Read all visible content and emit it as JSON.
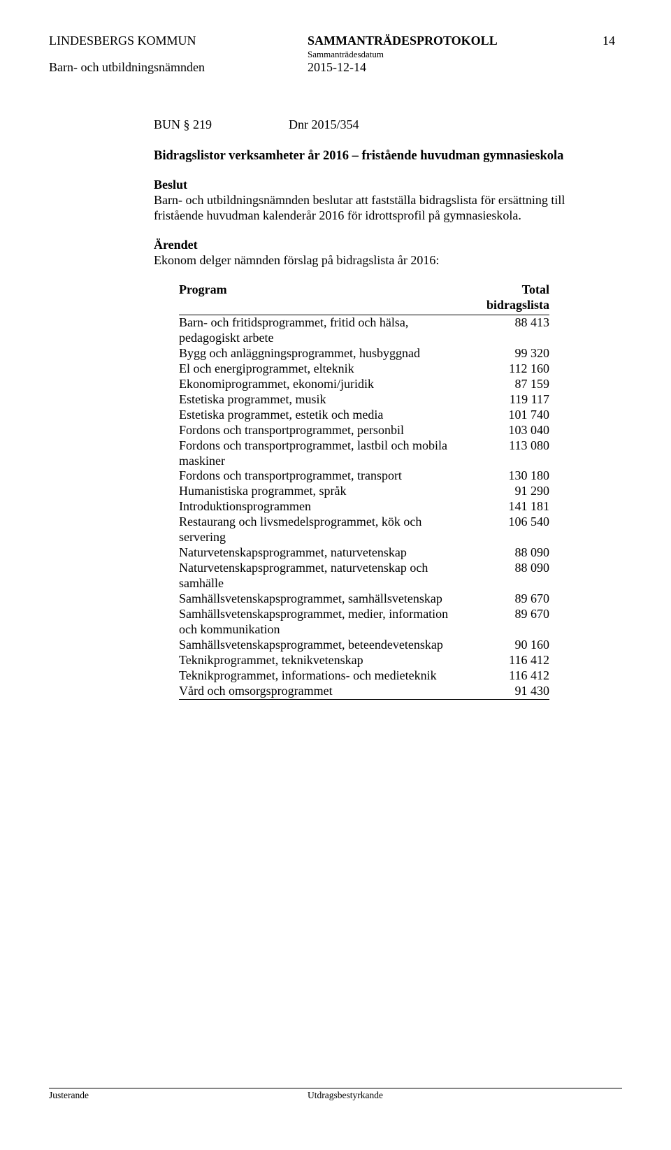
{
  "header": {
    "org": "LINDESBERGS KOMMUN",
    "committee": "Barn- och utbildningsnämnden",
    "doc_type": "SAMMANTRÄDESPROTOKOLL",
    "date_label": "Sammanträdesdatum",
    "date": "2015-12-14",
    "page_no": "14"
  },
  "bun": {
    "ref": "BUN § 219",
    "dnr": "Dnr 2015/354"
  },
  "title": "Bidragslistor verksamheter år 2016 – fristående huvudman gymnasieskola",
  "beslut": {
    "heading": "Beslut",
    "text": "Barn- och utbildningsnämnden beslutar att fastställa bidragslista för ersättning till fristående huvudman kalenderår 2016 för idrottsprofil på gymnasieskola."
  },
  "arendet": {
    "heading": "Ärendet",
    "text": "Ekonom delger nämnden förslag på bidragslista år 2016:"
  },
  "table": {
    "col_program": "Program",
    "col_total_1": "Total",
    "col_total_2": "bidragslista",
    "rows": [
      {
        "program": "Barn- och fritidsprogrammet, fritid och hälsa, pedagogiskt arbete",
        "value": "88 413"
      },
      {
        "program": "Bygg och anläggningsprogrammet, husbyggnad",
        "value": "99 320"
      },
      {
        "program": "El och energiprogrammet, elteknik",
        "value": "112 160"
      },
      {
        "program": "Ekonomiprogrammet, ekonomi/juridik",
        "value": "87 159"
      },
      {
        "program": "Estetiska programmet, musik",
        "value": "119 117"
      },
      {
        "program": "Estetiska programmet, estetik och media",
        "value": "101 740"
      },
      {
        "program": "Fordons och transportprogrammet, personbil",
        "value": "103 040"
      },
      {
        "program": "Fordons och transportprogrammet, lastbil och mobila maskiner",
        "value": "113 080"
      },
      {
        "program": "Fordons och transportprogrammet, transport",
        "value": "130 180"
      },
      {
        "program": "Humanistiska programmet, språk",
        "value": "91 290"
      },
      {
        "program": "Introduktionsprogrammen",
        "value": "141 181"
      },
      {
        "program": "Restaurang och livsmedelsprogrammet, kök och servering",
        "value": "106 540"
      },
      {
        "program": "Naturvetenskapsprogrammet, naturvetenskap",
        "value": "88 090"
      },
      {
        "program": "Naturvetenskapsprogrammet, naturvetenskap och samhälle",
        "value": "88 090"
      },
      {
        "program": "Samhällsvetenskapsprogrammet, samhällsvetenskap",
        "value": "89 670"
      },
      {
        "program": "Samhällsvetenskapsprogrammet, medier, information och kommunikation",
        "value": "89 670"
      },
      {
        "program": " Samhällsvetenskapsprogrammet, beteendevetenskap",
        "value": "90 160"
      },
      {
        "program": "Teknikprogrammet, teknikvetenskap",
        "value": "116 412"
      },
      {
        "program": "Teknikprogrammet, informations- och medieteknik",
        "value": "116 412"
      },
      {
        "program": "Vård och omsorgsprogrammet",
        "value": "91 430"
      }
    ]
  },
  "footer": {
    "left": "Justerande",
    "right": "Utdragsbestyrkande"
  }
}
